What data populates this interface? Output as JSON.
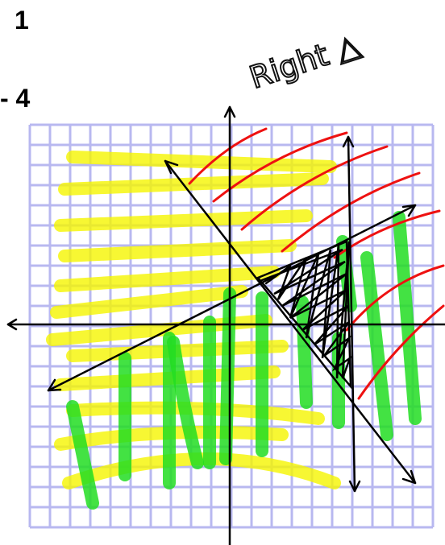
{
  "header": {
    "number": "1",
    "expression": "- 4"
  },
  "annotation": "Right △"
}
